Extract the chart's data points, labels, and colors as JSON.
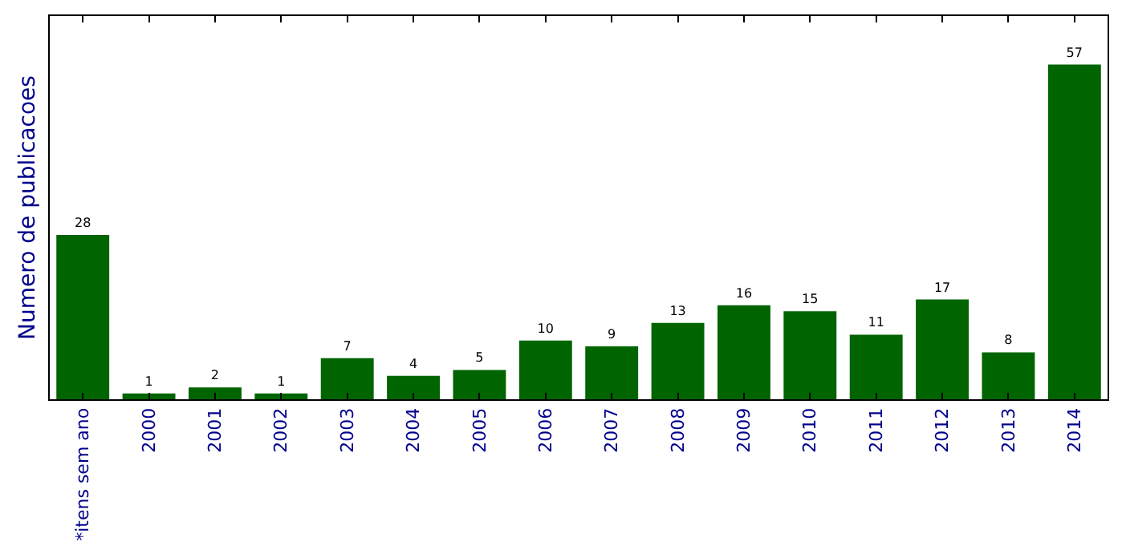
{
  "chart_data": {
    "type": "bar",
    "ylabel": "Numero de publicacoes",
    "categories": [
      "*itens sem ano",
      "2000",
      "2001",
      "2002",
      "2003",
      "2004",
      "2005",
      "2006",
      "2007",
      "2008",
      "2009",
      "2010",
      "2011",
      "2012",
      "2013",
      "2014"
    ],
    "values": [
      28,
      1,
      2,
      1,
      7,
      4,
      5,
      10,
      9,
      13,
      16,
      15,
      11,
      17,
      8,
      57
    ],
    "color": "#006400",
    "data_labels": true,
    "tick_labels": "x"
  }
}
